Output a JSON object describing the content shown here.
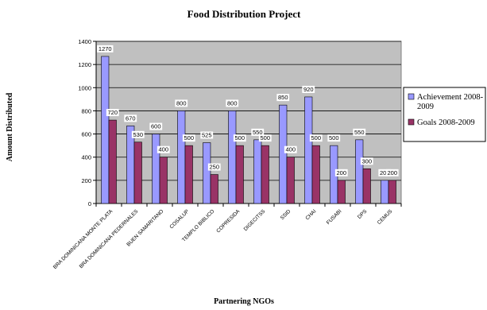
{
  "chart_data": {
    "type": "bar",
    "title": "Food Distribution Project",
    "xlabel": "Partnering NGOs",
    "ylabel": "Amount Distributed",
    "ylim": [
      0,
      1400
    ],
    "yticks": [
      0,
      200,
      400,
      600,
      800,
      1000,
      1200,
      1400
    ],
    "grid": true,
    "legend_position": "right",
    "categories": [
      "BRA DOMINICANA MONTE PLATA",
      "BRA DOMINICANA PEDERNALES",
      "BUEN SAMARITANO",
      "COSALUP",
      "TEMPLO BIBLICO",
      "COPRESIDA",
      "DIGECITSS",
      "SSID",
      "CHAI",
      "FUSABI",
      "DPS",
      "CEMUS"
    ],
    "series": [
      {
        "name": "Achievement 2008-2009",
        "legend_lines": [
          "Achievement 2008-",
          "2009"
        ],
        "color": "#9999ff",
        "values": [
          1270,
          670,
          600,
          800,
          525,
          800,
          550,
          850,
          920,
          500,
          550,
          200
        ]
      },
      {
        "name": "Goals 2008-2009",
        "legend_lines": [
          "Goals 2008-2009"
        ],
        "color": "#993366",
        "values": [
          720,
          530,
          400,
          500,
          250,
          500,
          500,
          400,
          500,
          200,
          300,
          200
        ]
      }
    ],
    "plot_background": "#c0c0c0"
  }
}
